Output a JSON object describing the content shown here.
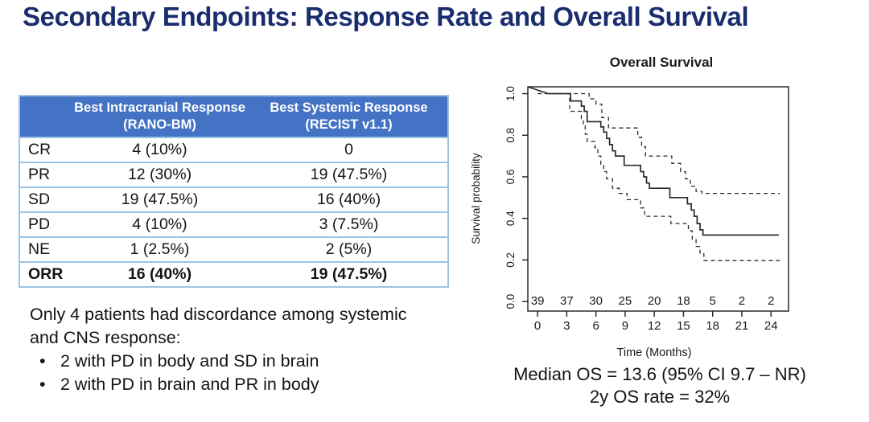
{
  "title": "Secondary Endpoints: Response Rate and Overall Survival",
  "colors": {
    "title_text": "#1a2d6e",
    "table_header_bg": "#4472c4",
    "table_header_text": "#ffffff",
    "table_border": "#9dc3e6",
    "body_text": "#141414",
    "curve": "#2b2b2b"
  },
  "table": {
    "col_headers": [
      "Best Intracranial Response (RANO-BM)",
      "Best Systemic Response (RECIST v1.1)"
    ],
    "rows": [
      {
        "label": "CR",
        "intracranial": "4 (10%)",
        "systemic": "0",
        "bold": false
      },
      {
        "label": "PR",
        "intracranial": "12 (30%)",
        "systemic": "19 (47.5%)",
        "bold": false
      },
      {
        "label": "SD",
        "intracranial": "19 (47.5%)",
        "systemic": "16 (40%)",
        "bold": false
      },
      {
        "label": "PD",
        "intracranial": "4 (10%)",
        "systemic": "3 (7.5%)",
        "bold": false
      },
      {
        "label": "NE",
        "intracranial": "1 (2.5%)",
        "systemic": "2 (5%)",
        "bold": false
      },
      {
        "label": "ORR",
        "intracranial": "16 (40%)",
        "systemic": "19 (47.5%)",
        "bold": true
      }
    ]
  },
  "notes": {
    "intro": "Only 4 patients had discordance among systemic and CNS response:",
    "bullets": [
      "2 with PD in body and SD in brain",
      "2 with PD in brain and PR in body"
    ]
  },
  "chart_data": {
    "type": "line",
    "subtype": "kaplan-meier-step",
    "title": "Overall Survival",
    "xlabel": "Time (Months)",
    "ylabel": "Survival probability",
    "xlim": [
      -1,
      25.8
    ],
    "ylim": [
      -0.046,
      1.033
    ],
    "xticks": [
      0,
      3,
      6,
      9,
      12,
      15,
      18,
      21,
      24
    ],
    "yticks": [
      0,
      0.2,
      0.4,
      0.6,
      0.8,
      1.0
    ],
    "grid": false,
    "legend": "none",
    "at_risk": {
      "times": [
        0,
        3,
        6,
        9,
        12,
        15,
        18,
        21,
        24
      ],
      "n": [
        39,
        37,
        30,
        25,
        20,
        18,
        5,
        2,
        2
      ]
    },
    "series": [
      {
        "name": "Overall survival (KM estimate)",
        "style": "solid",
        "lead": [
          [
            -1,
            1.033
          ],
          [
            1.1,
            1.0
          ]
        ],
        "points": [
          [
            1.1,
            1.0
          ],
          [
            3.4,
            0.965
          ],
          [
            4.5,
            0.94
          ],
          [
            4.8,
            0.915
          ],
          [
            5.1,
            0.865
          ],
          [
            6.5,
            0.84
          ],
          [
            6.8,
            0.815
          ],
          [
            7.1,
            0.785
          ],
          [
            7.4,
            0.755
          ],
          [
            7.7,
            0.725
          ],
          [
            8.0,
            0.7
          ],
          [
            8.9,
            0.655
          ],
          [
            10.6,
            0.625
          ],
          [
            10.9,
            0.6
          ],
          [
            11.2,
            0.57
          ],
          [
            11.5,
            0.545
          ],
          [
            13.6,
            0.5
          ],
          [
            15.4,
            0.47
          ],
          [
            15.8,
            0.44
          ],
          [
            16.1,
            0.41
          ],
          [
            16.4,
            0.375
          ],
          [
            16.7,
            0.345
          ],
          [
            17.0,
            0.32
          ],
          [
            24.8,
            0.32
          ]
        ]
      },
      {
        "name": "Upper 95% CI",
        "style": "dashed",
        "points": [
          [
            0,
            1.0
          ],
          [
            5.3,
            0.975
          ],
          [
            6.0,
            0.95
          ],
          [
            6.6,
            0.885
          ],
          [
            7.3,
            0.835
          ],
          [
            10.3,
            0.79
          ],
          [
            10.7,
            0.745
          ],
          [
            11.1,
            0.7
          ],
          [
            13.8,
            0.665
          ],
          [
            14.7,
            0.625
          ],
          [
            15.2,
            0.59
          ],
          [
            15.7,
            0.555
          ],
          [
            16.3,
            0.53
          ],
          [
            16.9,
            0.52
          ],
          [
            24.9,
            0.52
          ]
        ]
      },
      {
        "name": "Lower 95% CI",
        "style": "dashed",
        "points": [
          [
            0,
            1.0
          ],
          [
            3.3,
            0.915
          ],
          [
            4.5,
            0.88
          ],
          [
            4.7,
            0.845
          ],
          [
            4.9,
            0.805
          ],
          [
            5.1,
            0.77
          ],
          [
            5.9,
            0.74
          ],
          [
            6.2,
            0.7
          ],
          [
            6.5,
            0.66
          ],
          [
            6.8,
            0.625
          ],
          [
            7.1,
            0.59
          ],
          [
            7.7,
            0.545
          ],
          [
            8.4,
            0.52
          ],
          [
            9.2,
            0.49
          ],
          [
            10.6,
            0.45
          ],
          [
            11.0,
            0.41
          ],
          [
            13.7,
            0.375
          ],
          [
            15.5,
            0.34
          ],
          [
            15.9,
            0.3
          ],
          [
            16.3,
            0.265
          ],
          [
            16.7,
            0.23
          ],
          [
            17.1,
            0.197
          ],
          [
            24.9,
            0.197
          ]
        ]
      }
    ],
    "annotations": [
      "Median OS = 13.6 (95% CI 9.7 – NR)",
      "2y OS rate = 32%"
    ]
  }
}
